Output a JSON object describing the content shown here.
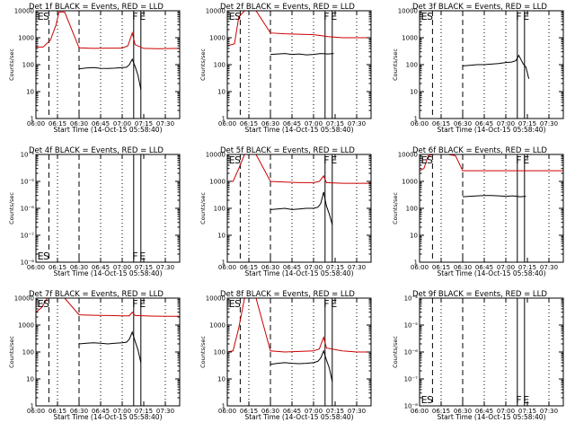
{
  "chart_data": [
    {
      "type": "line",
      "title": "Det 1f BLACK = Events, RED = LLD",
      "xlabel": "Start Time (14-Oct-15 05:58:40)",
      "ylabel": "Counts/sec",
      "ylog": true,
      "ylim": [
        1,
        10000
      ],
      "ytick_labels": [
        "1",
        "10",
        "100",
        "1000",
        "10000"
      ],
      "xlim": [
        "06:00",
        "07:40"
      ],
      "xtick_labels": [
        "06:00",
        "06:15",
        "06:30",
        "06:45",
        "07:00",
        "07:15",
        "07:30"
      ],
      "markers": [
        "E",
        "S",
        "F",
        "E"
      ],
      "series": [
        {
          "color": "#000000",
          "x": [
            "06:30",
            "06:35",
            "06:40",
            "06:45",
            "06:50",
            "06:55",
            "07:00",
            "07:03",
            "07:05",
            "07:07",
            "07:09",
            "07:11",
            "07:13"
          ],
          "values": [
            70,
            75,
            78,
            73,
            72,
            74,
            78,
            80,
            100,
            160,
            85,
            40,
            12
          ]
        },
        {
          "color": "#cc0000",
          "x": [
            "06:00",
            "06:05",
            "06:10",
            "06:14",
            "06:16",
            "06:20",
            "06:30",
            "06:40",
            "06:50",
            "07:00",
            "07:04",
            "07:07",
            "07:09",
            "07:15",
            "07:25",
            "07:40"
          ],
          "values": [
            450,
            450,
            800,
            3000,
            9000,
            9000,
            420,
            400,
            410,
            410,
            500,
            1500,
            550,
            400,
            390,
            400
          ]
        }
      ],
      "grid": false
    },
    {
      "type": "line",
      "title": "Det 2f BLACK = Events, RED = LLD",
      "xlabel": "Start Time (14-Oct-15 05:58:40)",
      "ylabel": "Counts/sec",
      "ylog": true,
      "ylim": [
        1,
        10000
      ],
      "ytick_labels": [
        "1",
        "10",
        "100",
        "1000",
        "10000"
      ],
      "xlim": [
        "06:00",
        "07:40"
      ],
      "xtick_labels": [
        "06:00",
        "06:15",
        "06:30",
        "06:45",
        "07:00",
        "07:15",
        "07:30"
      ],
      "markers": [
        "E",
        "S",
        "F",
        "E"
      ],
      "series": [
        {
          "color": "#000000",
          "x": [
            "06:30",
            "06:35",
            "06:40",
            "06:45",
            "06:50",
            "06:55",
            "07:00",
            "07:05",
            "07:10",
            "07:14"
          ],
          "values": [
            240,
            250,
            260,
            240,
            250,
            230,
            240,
            260,
            250,
            260
          ]
        },
        {
          "color": "#cc0000",
          "x": [
            "06:00",
            "06:05",
            "06:08",
            "06:12",
            "06:20",
            "06:30",
            "06:40",
            "06:50",
            "07:00",
            "07:05",
            "07:10",
            "07:20",
            "07:30",
            "07:40"
          ],
          "values": [
            500,
            600,
            6000,
            12000,
            12000,
            1500,
            1400,
            1350,
            1300,
            1200,
            1100,
            1000,
            1000,
            1000
          ]
        }
      ],
      "grid": false
    },
    {
      "type": "line",
      "title": "Det 3f BLACK = Events, RED = LLD",
      "xlabel": "Start Time (14-Oct-15 05:58:40)",
      "ylabel": "Counts/sec",
      "ylog": true,
      "ylim": [
        1,
        10000
      ],
      "ytick_labels": [
        "1",
        "10",
        "100",
        "1000",
        "10000"
      ],
      "xlim": [
        "06:00",
        "07:40"
      ],
      "xtick_labels": [
        "06:00",
        "06:15",
        "06:30",
        "06:45",
        "07:00",
        "07:15",
        "07:30"
      ],
      "markers": [
        "E",
        "S",
        "F",
        "E"
      ],
      "series": [
        {
          "color": "#000000",
          "x": [
            "06:30",
            "06:35",
            "06:40",
            "06:45",
            "06:50",
            "06:55",
            "07:00",
            "07:04",
            "07:07",
            "07:09",
            "07:12",
            "07:14",
            "07:16"
          ],
          "values": [
            90,
            95,
            100,
            100,
            105,
            110,
            120,
            125,
            140,
            220,
            110,
            80,
            30
          ]
        }
      ],
      "grid": false
    },
    {
      "type": "line",
      "title": "Det 4f BLACK = Events, RED = LLD",
      "xlabel": "Start Time (14-Oct-15 05:58:40)",
      "ylabel": "Counts/sec",
      "ylog": true,
      "ylim": [
        1e-08,
        0.0001
      ],
      "ytick_labels": [
        "10⁻⁸",
        "10⁻⁷",
        "10⁻⁶",
        "10⁻⁵",
        "10⁻⁴"
      ],
      "xlim": [
        "06:00",
        "07:40"
      ],
      "xtick_labels": [
        "06:00",
        "06:15",
        "06:30",
        "06:45",
        "07:00",
        "07:15",
        "07:30"
      ],
      "markers": [
        "E",
        "S",
        "F",
        "E"
      ],
      "series": [],
      "grid": false
    },
    {
      "type": "line",
      "title": "Det 5f BLACK = Events, RED = LLD",
      "xlabel": "Start Time (14-Oct-15 05:58:40)",
      "ylabel": "Counts/sec",
      "ylog": true,
      "ylim": [
        1,
        10000
      ],
      "ytick_labels": [
        "1",
        "10",
        "100",
        "1000",
        "10000"
      ],
      "xlim": [
        "06:00",
        "07:40"
      ],
      "xtick_labels": [
        "06:00",
        "06:15",
        "06:30",
        "06:45",
        "07:00",
        "07:15",
        "07:30"
      ],
      "markers": [
        "E",
        "S",
        "F",
        "E"
      ],
      "series": [
        {
          "color": "#000000",
          "x": [
            "06:30",
            "06:35",
            "06:40",
            "06:45",
            "06:50",
            "06:55",
            "07:00",
            "07:03",
            "07:05",
            "07:07",
            "07:09",
            "07:11",
            "07:13"
          ],
          "values": [
            90,
            95,
            100,
            90,
            95,
            100,
            100,
            110,
            150,
            400,
            120,
            60,
            25
          ]
        },
        {
          "color": "#cc0000",
          "x": [
            "06:00",
            "06:04",
            "06:08",
            "06:12",
            "06:20",
            "06:30",
            "06:40",
            "06:50",
            "07:00",
            "07:04",
            "07:07",
            "07:09",
            "07:20",
            "07:30",
            "07:40"
          ],
          "values": [
            1000,
            1000,
            3000,
            12000,
            12000,
            1000,
            950,
            900,
            900,
            1000,
            1600,
            900,
            850,
            850,
            850
          ]
        }
      ],
      "grid": false
    },
    {
      "type": "line",
      "title": "Det 6f BLACK = Events, RED = LLD",
      "xlabel": "Start Time (14-Oct-15 05:58:40)",
      "ylabel": "Counts/sec",
      "ylog": true,
      "ylim": [
        1,
        10000
      ],
      "ytick_labels": [
        "1",
        "10",
        "100",
        "1000",
        "10000"
      ],
      "xlim": [
        "06:00",
        "07:40"
      ],
      "xtick_labels": [
        "06:00",
        "06:15",
        "06:30",
        "06:45",
        "07:00",
        "07:15",
        "07:30"
      ],
      "markers": [
        "E",
        "S",
        "F",
        "E"
      ],
      "series": [
        {
          "color": "#000000",
          "x": [
            "06:30",
            "06:35",
            "06:40",
            "06:45",
            "06:50",
            "06:55",
            "07:00",
            "07:05",
            "07:10",
            "07:14"
          ],
          "values": [
            270,
            280,
            290,
            300,
            300,
            290,
            280,
            290,
            270,
            280
          ]
        },
        {
          "color": "#cc0000",
          "x": [
            "06:00",
            "06:03",
            "06:06",
            "06:10",
            "06:15",
            "06:20",
            "06:25",
            "06:30",
            "06:40",
            "06:50",
            "07:00",
            "07:10",
            "07:20",
            "07:30",
            "07:40"
          ],
          "values": [
            2500,
            3000,
            9000,
            10000,
            10000,
            10000,
            9000,
            2500,
            2500,
            2500,
            2500,
            2500,
            2500,
            2500,
            2500
          ]
        }
      ],
      "grid": false
    },
    {
      "type": "line",
      "title": "Det 7f BLACK = Events, RED = LLD",
      "xlabel": "Start Time (14-Oct-15 05:58:40)",
      "ylabel": "Counts/sec",
      "ylog": true,
      "ylim": [
        1,
        10000
      ],
      "ytick_labels": [
        "1",
        "10",
        "100",
        "1000",
        "10000"
      ],
      "xlim": [
        "06:00",
        "07:40"
      ],
      "xtick_labels": [
        "06:00",
        "06:15",
        "06:30",
        "06:45",
        "07:00",
        "07:15",
        "07:30"
      ],
      "markers": [
        "E",
        "S",
        "F",
        "E"
      ],
      "series": [
        {
          "color": "#000000",
          "x": [
            "06:30",
            "06:35",
            "06:40",
            "06:45",
            "06:50",
            "06:55",
            "07:00",
            "07:03",
            "07:05",
            "07:07",
            "07:09",
            "07:11",
            "07:13"
          ],
          "values": [
            200,
            210,
            220,
            210,
            200,
            210,
            220,
            230,
            300,
            550,
            250,
            120,
            40
          ]
        },
        {
          "color": "#cc0000",
          "x": [
            "06:00",
            "06:04",
            "06:08",
            "06:12",
            "06:20",
            "06:30",
            "06:40",
            "06:50",
            "07:00",
            "07:05",
            "07:07",
            "07:09",
            "07:20",
            "07:30",
            "07:40"
          ],
          "values": [
            3000,
            4500,
            10000,
            12000,
            12000,
            2400,
            2300,
            2250,
            2200,
            2200,
            3000,
            2250,
            2150,
            2100,
            2100
          ]
        }
      ],
      "grid": false
    },
    {
      "type": "line",
      "title": "Det 8f BLACK = Events, RED = LLD",
      "xlabel": "Start Time (14-Oct-15 05:58:40)",
      "ylabel": "Counts/sec",
      "ylog": true,
      "ylim": [
        1,
        10000
      ],
      "ytick_labels": [
        "1",
        "10",
        "100",
        "1000",
        "10000"
      ],
      "xlim": [
        "06:00",
        "07:40"
      ],
      "xtick_labels": [
        "06:00",
        "06:15",
        "06:30",
        "06:45",
        "07:00",
        "07:15",
        "07:30"
      ],
      "markers": [
        "E",
        "S",
        "F",
        "E"
      ],
      "series": [
        {
          "color": "#000000",
          "x": [
            "06:30",
            "06:35",
            "06:40",
            "06:45",
            "06:50",
            "06:55",
            "07:00",
            "07:03",
            "07:05",
            "07:07",
            "07:09",
            "07:11",
            "07:13"
          ],
          "values": [
            35,
            38,
            40,
            38,
            37,
            38,
            40,
            45,
            60,
            110,
            50,
            25,
            8
          ]
        },
        {
          "color": "#cc0000",
          "x": [
            "06:00",
            "06:04",
            "06:08",
            "06:12",
            "06:20",
            "06:30",
            "06:40",
            "06:50",
            "07:00",
            "07:04",
            "07:07",
            "07:09",
            "07:20",
            "07:30",
            "07:40"
          ],
          "values": [
            100,
            110,
            800,
            12000,
            12000,
            110,
            100,
            105,
            110,
            130,
            350,
            140,
            110,
            100,
            100
          ]
        }
      ],
      "grid": false
    },
    {
      "type": "line",
      "title": "Det 9f BLACK = Events, RED = LLD",
      "xlabel": "Start Time (14-Oct-15 05:58:40)",
      "ylabel": "Counts/sec",
      "ylog": true,
      "ylim": [
        1e-08,
        0.0001
      ],
      "ytick_labels": [
        "10⁻⁸",
        "10⁻⁷",
        "10⁻⁶",
        "10⁻⁵",
        "10⁻⁴"
      ],
      "xlim": [
        "06:00",
        "07:40"
      ],
      "xtick_labels": [
        "06:00",
        "06:15",
        "06:30",
        "06:45",
        "07:00",
        "07:15",
        "07:30"
      ],
      "markers": [
        "E",
        "S",
        "F",
        "E"
      ],
      "series": [],
      "grid": false
    }
  ]
}
